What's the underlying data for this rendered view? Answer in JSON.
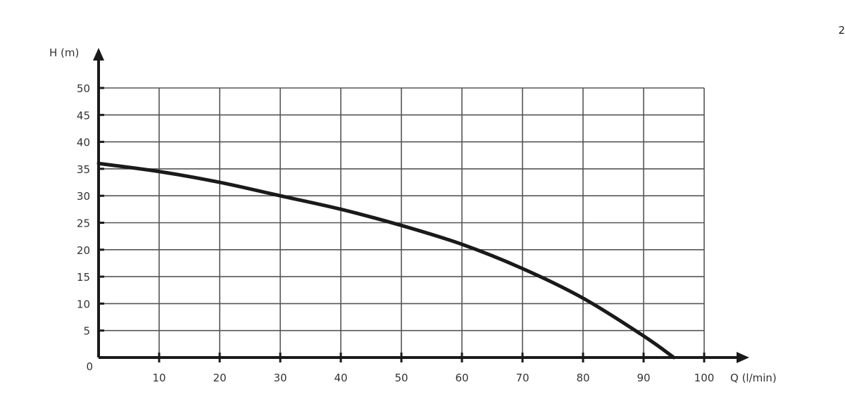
{
  "page_number": "2",
  "chart_data": {
    "type": "line",
    "title": "",
    "xlabel": "Q (l/min)",
    "ylabel": "H (m)",
    "xlim": [
      0,
      100
    ],
    "ylim": [
      0,
      50
    ],
    "x_ticks": [
      10,
      20,
      30,
      40,
      50,
      60,
      70,
      80,
      90,
      100
    ],
    "y_ticks": [
      0,
      5,
      10,
      15,
      20,
      25,
      30,
      35,
      40,
      45,
      50
    ],
    "grid": true,
    "colors": {
      "curve": "#1a1a1a",
      "grid": "#555555",
      "axis": "#1a1a1a"
    },
    "series": [
      {
        "x": [
          0,
          10,
          20,
          30,
          40,
          50,
          60,
          70,
          80,
          90,
          95
        ],
        "y": [
          36,
          34.5,
          32.5,
          30,
          27.5,
          24.5,
          21,
          16.5,
          11,
          4,
          0
        ]
      }
    ]
  }
}
